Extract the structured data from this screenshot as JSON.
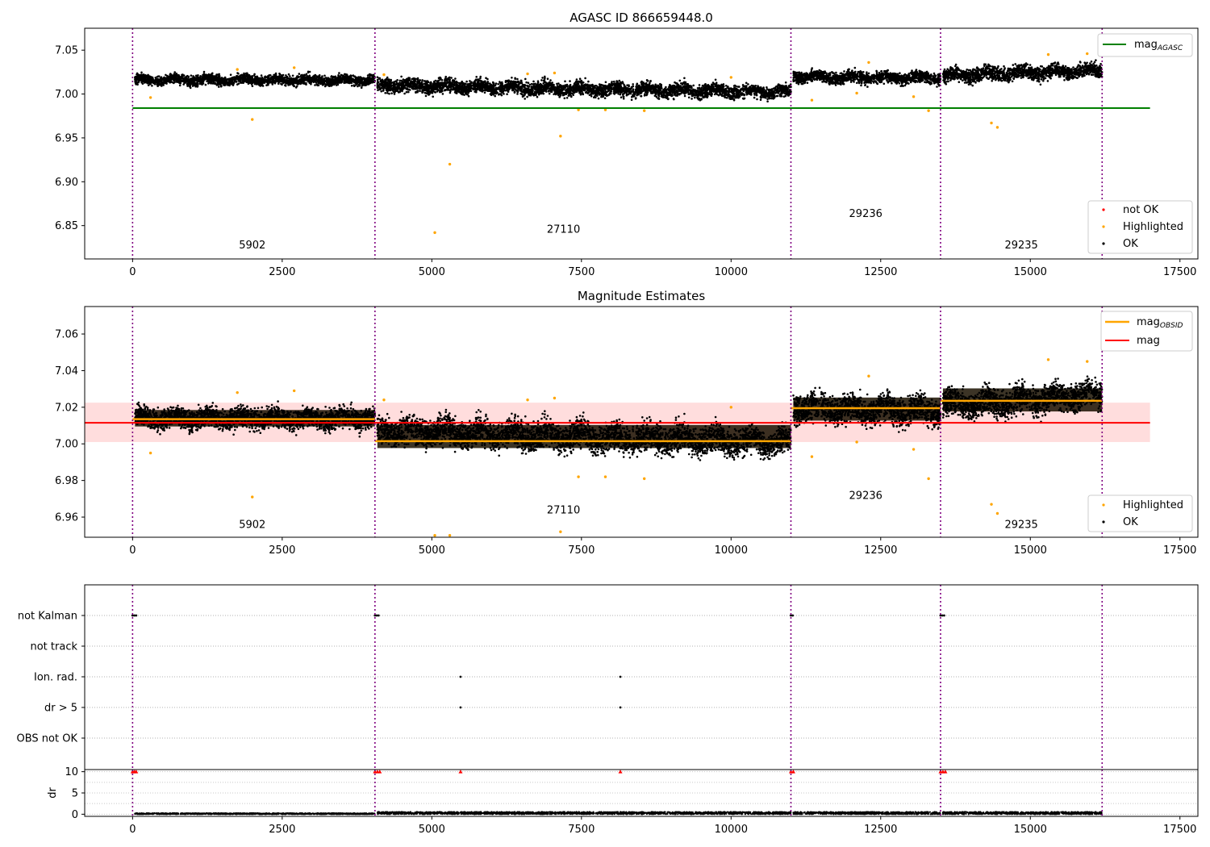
{
  "chart_data": [
    {
      "type": "scatter",
      "title": "AGASC ID 866659448.0",
      "xlim": [
        -800,
        17800
      ],
      "ylim": [
        6.812,
        7.075
      ],
      "xticks": [
        0,
        2500,
        5000,
        7500,
        10000,
        12500,
        15000,
        17500
      ],
      "xtick_labels": [
        "0",
        "2500",
        "5000",
        "7500",
        "10000",
        "12500",
        "15000",
        "17500"
      ],
      "yticks": [
        6.85,
        6.9,
        6.95,
        7.0,
        7.05
      ],
      "ytick_labels": [
        "6.85",
        "6.90",
        "6.95",
        "7.00",
        "7.05"
      ],
      "obs_boundaries": [
        0,
        4050,
        11000,
        13500,
        16200
      ],
      "obsid_labels": [
        {
          "text": "5902",
          "x": 2000,
          "y": 6.824
        },
        {
          "text": "27110",
          "x": 7200,
          "y": 6.842
        },
        {
          "text": "29236",
          "x": 12250,
          "y": 6.86
        },
        {
          "text": "29235",
          "x": 14850,
          "y": 6.824
        }
      ],
      "bands": [
        {
          "x0": 0,
          "x1": 4050,
          "center": 7.016,
          "spread": 0.005,
          "trend": 0.0,
          "min": 7.004
        },
        {
          "x0": 4050,
          "x1": 11000,
          "center": 7.006,
          "spread": 0.007,
          "trend": -0.008,
          "min": 6.988
        },
        {
          "x0": 11000,
          "x1": 13500,
          "center": 7.019,
          "spread": 0.006,
          "trend": -0.002,
          "min": 7.004
        },
        {
          "x0": 13500,
          "x1": 16200,
          "center": 7.024,
          "spread": 0.007,
          "trend": 0.006,
          "min": 7.008
        }
      ],
      "series": [
        {
          "name": "mag_AGASC",
          "type": "hline",
          "y": 6.984,
          "x0": 0,
          "x1": 17000,
          "color": "#008000"
        },
        {
          "name": "not OK",
          "color": "#ff0000",
          "points": []
        },
        {
          "name": "Highlighted",
          "color": "#ffa500",
          "points": [
            [
              300,
              6.996
            ],
            [
              2000,
              6.971
            ],
            [
              5050,
              6.842
            ],
            [
              5300,
              6.92
            ],
            [
              7150,
              6.952
            ],
            [
              7450,
              6.982
            ],
            [
              7900,
              6.982
            ],
            [
              8550,
              6.981
            ],
            [
              11350,
              6.993
            ],
            [
              12100,
              7.001
            ],
            [
              13050,
              6.997
            ],
            [
              13300,
              6.981
            ],
            [
              14350,
              6.967
            ],
            [
              14450,
              6.962
            ],
            [
              1750,
              7.028
            ],
            [
              2700,
              7.03
            ],
            [
              4200,
              7.022
            ],
            [
              6600,
              7.023
            ],
            [
              7050,
              7.024
            ],
            [
              10000,
              7.019
            ],
            [
              12300,
              7.036
            ],
            [
              15300,
              7.045
            ],
            [
              15950,
              7.046
            ]
          ]
        },
        {
          "name": "OK",
          "color": "#000000",
          "points": []
        }
      ],
      "legend": [
        "not OK",
        "Highlighted",
        "OK"
      ],
      "legend_placement": "lower-right",
      "line_legend_placement": "upper-right"
    },
    {
      "type": "scatter",
      "title": "Magnitude Estimates",
      "xlim": [
        -800,
        17800
      ],
      "ylim": [
        6.949,
        7.075
      ],
      "xticks": [
        0,
        2500,
        5000,
        7500,
        10000,
        12500,
        15000,
        17500
      ],
      "xtick_labels": [
        "0",
        "2500",
        "5000",
        "7500",
        "10000",
        "12500",
        "15000",
        "17500"
      ],
      "yticks": [
        6.96,
        6.98,
        7.0,
        7.02,
        7.04,
        7.06
      ],
      "ytick_labels": [
        "6.96",
        "6.98",
        "7.00",
        "7.02",
        "7.04",
        "7.06"
      ],
      "obs_boundaries": [
        0,
        4050,
        11000,
        13500,
        16200
      ],
      "obsid_labels": [
        {
          "text": "5902",
          "x": 2000,
          "y": 6.954
        },
        {
          "text": "27110",
          "x": 7200,
          "y": 6.962
        },
        {
          "text": "29236",
          "x": 12250,
          "y": 6.97
        },
        {
          "text": "29235",
          "x": 14850,
          "y": 6.954
        }
      ],
      "band": {
        "y0": 7.001,
        "y1": 7.0225,
        "x0": -800,
        "x1": 17000,
        "color": "#ffdddd"
      },
      "bands": [
        {
          "x0": 0,
          "x1": 4050,
          "center": 7.014,
          "spread": 0.005,
          "trend": 0.0,
          "min": 7.002
        },
        {
          "x0": 4050,
          "x1": 11000,
          "center": 7.004,
          "spread": 0.007,
          "trend": -0.007,
          "min": 6.986
        },
        {
          "x0": 11000,
          "x1": 13500,
          "center": 7.019,
          "spread": 0.007,
          "trend": -0.002,
          "min": 7.004
        },
        {
          "x0": 13500,
          "x1": 16200,
          "center": 7.024,
          "spread": 0.007,
          "trend": 0.006,
          "min": 7.008
        }
      ],
      "series": [
        {
          "name": "mag_OBSID",
          "type": "segments",
          "color": "#ffa500",
          "segments": [
            [
              0,
              4050,
              7.0135
            ],
            [
              4050,
              11000,
              7.0015
            ],
            [
              11000,
              13500,
              7.0195
            ],
            [
              13500,
              16200,
              7.0235
            ]
          ]
        },
        {
          "name": "mag",
          "type": "hline",
          "y": 7.0115,
          "x0": -800,
          "x1": 17000,
          "color": "#ff0000"
        },
        {
          "name": "Highlighted",
          "color": "#ffa500",
          "points": [
            [
              300,
              6.995
            ],
            [
              2000,
              6.971
            ],
            [
              5050,
              6.95
            ],
            [
              5300,
              6.95
            ],
            [
              7150,
              6.952
            ],
            [
              7450,
              6.982
            ],
            [
              7900,
              6.982
            ],
            [
              8550,
              6.981
            ],
            [
              11350,
              6.993
            ],
            [
              12100,
              7.001
            ],
            [
              13050,
              6.997
            ],
            [
              13300,
              6.981
            ],
            [
              14350,
              6.967
            ],
            [
              14450,
              6.962
            ],
            [
              1750,
              7.028
            ],
            [
              2700,
              7.029
            ],
            [
              4200,
              7.024
            ],
            [
              6600,
              7.024
            ],
            [
              7050,
              7.025
            ],
            [
              10000,
              7.02
            ],
            [
              12300,
              7.037
            ],
            [
              15300,
              7.046
            ],
            [
              15950,
              7.045
            ]
          ]
        },
        {
          "name": "OK",
          "color": "#000000",
          "points": []
        }
      ],
      "legend": [
        "Highlighted",
        "OK"
      ],
      "legend_placement": "lower-right",
      "line_legend_placement": "upper-right"
    },
    {
      "type": "scatter",
      "title": "",
      "xlim": [
        -800,
        17800
      ],
      "flag_rows": [
        "not Kalman",
        "not track",
        "Ion. rad.",
        "dr > 5",
        "OBS not OK"
      ],
      "obs_boundaries": [
        0,
        4050,
        11000,
        13500,
        16200
      ],
      "flags": [
        {
          "row": "not Kalman",
          "points": [
            0,
            30,
            60,
            4050,
            4080,
            4110,
            11000,
            11030,
            13500,
            13530,
            13560
          ]
        },
        {
          "row": "Ion. rad.",
          "points": [
            5480,
            8150
          ]
        },
        {
          "row": "dr > 5",
          "points": [
            5480,
            8150
          ]
        }
      ]
    },
    {
      "type": "scatter",
      "title": "",
      "ylabel": "dr",
      "xlim": [
        -800,
        17800
      ],
      "ylim": [
        -0.5,
        10.5
      ],
      "yticks": [
        0,
        5,
        10
      ],
      "ytick_labels": [
        "0",
        "5",
        "10"
      ],
      "xticks": [
        0,
        2500,
        5000,
        7500,
        10000,
        12500,
        15000,
        17500
      ],
      "xtick_labels": [
        "0",
        "2500",
        "5000",
        "7500",
        "10000",
        "12500",
        "15000",
        "17500"
      ],
      "obs_boundaries": [
        0,
        4050,
        11000,
        13500,
        16200
      ],
      "clipped_points": [
        0,
        30,
        60,
        4050,
        4090,
        4130,
        5480,
        8150,
        11000,
        11040,
        13500,
        13540,
        13580
      ],
      "series": [
        {
          "name": "dr",
          "color": "#000000",
          "approx_range": [
            0,
            0.6
          ]
        }
      ]
    }
  ],
  "legend_labels": {
    "agasc_base": "mag",
    "agasc_sub": "AGASC",
    "obsid_base": "mag",
    "obsid_sub": "OBSID",
    "mag": "mag",
    "not_ok": "not OK",
    "highlighted": "Highlighted",
    "ok": "OK"
  }
}
